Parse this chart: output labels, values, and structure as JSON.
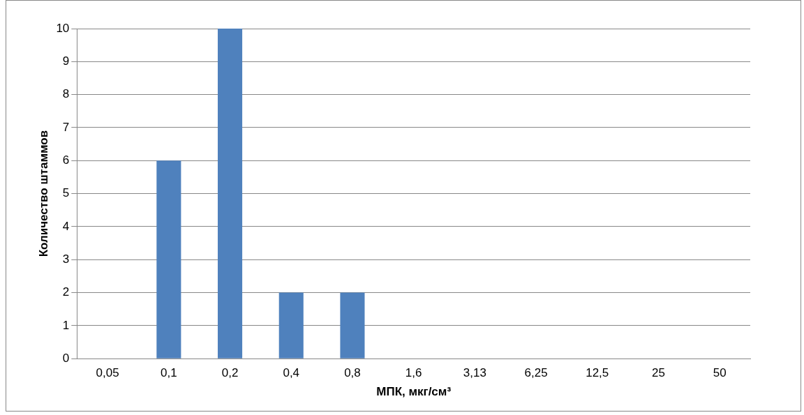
{
  "chart_data": {
    "type": "bar",
    "xlabel": "МПК, мкг/см³",
    "ylabel": "Количество штаммов",
    "categories": [
      "0,05",
      "0,1",
      "0,2",
      "0,4",
      "0,8",
      "1,6",
      "3,13",
      "6,25",
      "12,5",
      "25",
      "50"
    ],
    "values": [
      0,
      6,
      10,
      2,
      2,
      0,
      0,
      0,
      0,
      0,
      0
    ],
    "color": "#4f81bd",
    "ylim": [
      0,
      10
    ],
    "yticks": [
      0,
      1,
      2,
      3,
      4,
      5,
      6,
      7,
      8,
      9,
      10
    ],
    "grid": "y",
    "legend": false
  }
}
